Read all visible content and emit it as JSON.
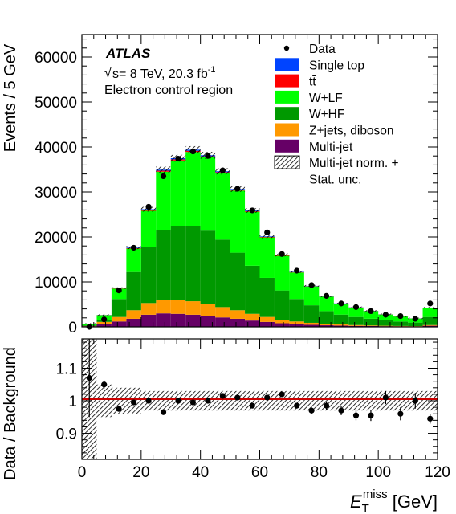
{
  "chart_data": {
    "type": "stacked-bar-histogram",
    "experiment": "ATLAS",
    "energy_line": "s= 8 TeV,  20.3 fb",
    "energy_sup": "-1",
    "sqrt_symbol": "√",
    "region_label": "Electron control region",
    "ylabel_top": "Events / 5 GeV",
    "ylabel_bottom": "Data / Background",
    "xlabel_main": "E",
    "xlabel_sub": "T",
    "xlabel_sup": "miss",
    "xlabel_unit": " [GeV]",
    "xlim": [
      0,
      120
    ],
    "ylim_top": [
      0,
      65000
    ],
    "ylim_ratio": [
      0.82,
      1.19
    ],
    "bin_width": 5,
    "x_ticks": [
      "0",
      "20",
      "40",
      "60",
      "80",
      "100",
      "120"
    ],
    "x_tick_values": [
      0,
      20,
      40,
      60,
      80,
      100,
      120
    ],
    "y_ticks_top": [
      "0",
      "10000",
      "20000",
      "30000",
      "40000",
      "50000",
      "60000"
    ],
    "y_tick_values_top": [
      0,
      10000,
      20000,
      30000,
      40000,
      50000,
      60000
    ],
    "y_ticks_ratio": [
      "0.9",
      "1",
      "1.1"
    ],
    "y_tick_values_ratio": [
      0.9,
      1.0,
      1.1
    ],
    "bin_low_edges": [
      0,
      5,
      10,
      15,
      20,
      25,
      30,
      35,
      40,
      45,
      50,
      55,
      60,
      65,
      70,
      75,
      80,
      85,
      90,
      95,
      100,
      105,
      110,
      115
    ],
    "colors": {
      "single_top": "#0044ff",
      "ttbar": "#ff0000",
      "wlf": "#00ff00",
      "whf": "#009900",
      "zjets_diboson": "#ff9900",
      "multijet": "#660066",
      "data": "#000000",
      "ratio_line": "#cc0000"
    },
    "legend": [
      {
        "key": "data",
        "label": "Data"
      },
      {
        "key": "single_top",
        "label": "Single top"
      },
      {
        "key": "ttbar",
        "label": "tt̄"
      },
      {
        "key": "wlf",
        "label": "W+LF"
      },
      {
        "key": "whf",
        "label": "W+HF"
      },
      {
        "key": "zjets_diboson",
        "label": "Z+jets, diboson"
      },
      {
        "key": "multijet",
        "label": "Multi-jet"
      },
      {
        "key": "unc",
        "label": "Multi-jet norm. +"
      },
      {
        "key": "unc2",
        "label": "Stat. unc."
      }
    ],
    "series": [
      {
        "key": "multijet",
        "values": [
          150,
          600,
          1200,
          1800,
          2700,
          3000,
          2900,
          2700,
          2400,
          2100,
          1800,
          1400,
          1100,
          800,
          600,
          450,
          350,
          280,
          220,
          180,
          150,
          120,
          100,
          250
        ]
      },
      {
        "key": "zjets_diboson",
        "values": [
          50,
          500,
          1000,
          1900,
          2600,
          3000,
          3100,
          3000,
          2700,
          2300,
          1900,
          1500,
          1100,
          800,
          600,
          450,
          350,
          250,
          180,
          130,
          100,
          80,
          60,
          150
        ]
      },
      {
        "key": "whf",
        "values": [
          150,
          500,
          4000,
          8500,
          12500,
          15500,
          16500,
          16800,
          16300,
          15000,
          12800,
          10700,
          8700,
          6500,
          5000,
          3900,
          2800,
          2200,
          1800,
          1500,
          1200,
          1000,
          800,
          1800
        ]
      },
      {
        "key": "wlf",
        "values": [
          300,
          1000,
          2300,
          5200,
          8000,
          13000,
          14500,
          16400,
          16300,
          14800,
          13800,
          12000,
          9000,
          7700,
          5900,
          4200,
          3200,
          2400,
          2100,
          1700,
          1300,
          1100,
          900,
          2000
        ]
      },
      {
        "key": "ttbar",
        "values": [
          5,
          20,
          60,
          120,
          180,
          230,
          250,
          250,
          230,
          200,
          180,
          150,
          120,
          100,
          80,
          60,
          50,
          40,
          30,
          25,
          20,
          15,
          15,
          40
        ]
      },
      {
        "key": "single_top",
        "values": [
          5,
          20,
          60,
          120,
          180,
          220,
          250,
          250,
          230,
          200,
          170,
          150,
          120,
          100,
          80,
          60,
          50,
          40,
          30,
          25,
          20,
          15,
          15,
          40
        ]
      }
    ],
    "data_points": [
      0,
      1650,
      8100,
      17600,
      26700,
      33500,
      37400,
      39000,
      38000,
      34800,
      30700,
      25900,
      21000,
      16200,
      12500,
      9300,
      6900,
      5200,
      4400,
      3500,
      2700,
      2400,
      1800,
      5200
    ],
    "ratio_points": [
      1.07,
      1.05,
      0.975,
      0.995,
      1.0,
      0.965,
      1.0,
      0.995,
      1.0,
      1.015,
      1.01,
      0.985,
      1.01,
      1.02,
      0.985,
      0.97,
      0.985,
      0.97,
      0.955,
      0.955,
      1.01,
      0.96,
      1.0,
      0.945
    ],
    "ratio_errors": [
      0.12,
      0.012,
      0.006,
      0.005,
      0.004,
      0.004,
      0.004,
      0.004,
      0.004,
      0.004,
      0.004,
      0.005,
      0.006,
      0.007,
      0.008,
      0.01,
      0.012,
      0.014,
      0.015,
      0.017,
      0.02,
      0.02,
      0.024,
      0.015
    ],
    "unc_band_ratio": [
      0.2,
      0.05,
      0.04,
      0.04,
      0.03,
      0.03,
      0.03,
      0.03,
      0.03,
      0.03,
      0.03,
      0.03,
      0.03,
      0.03,
      0.03,
      0.03,
      0.03,
      0.03,
      0.03,
      0.03,
      0.03,
      0.03,
      0.03,
      0.03
    ]
  }
}
